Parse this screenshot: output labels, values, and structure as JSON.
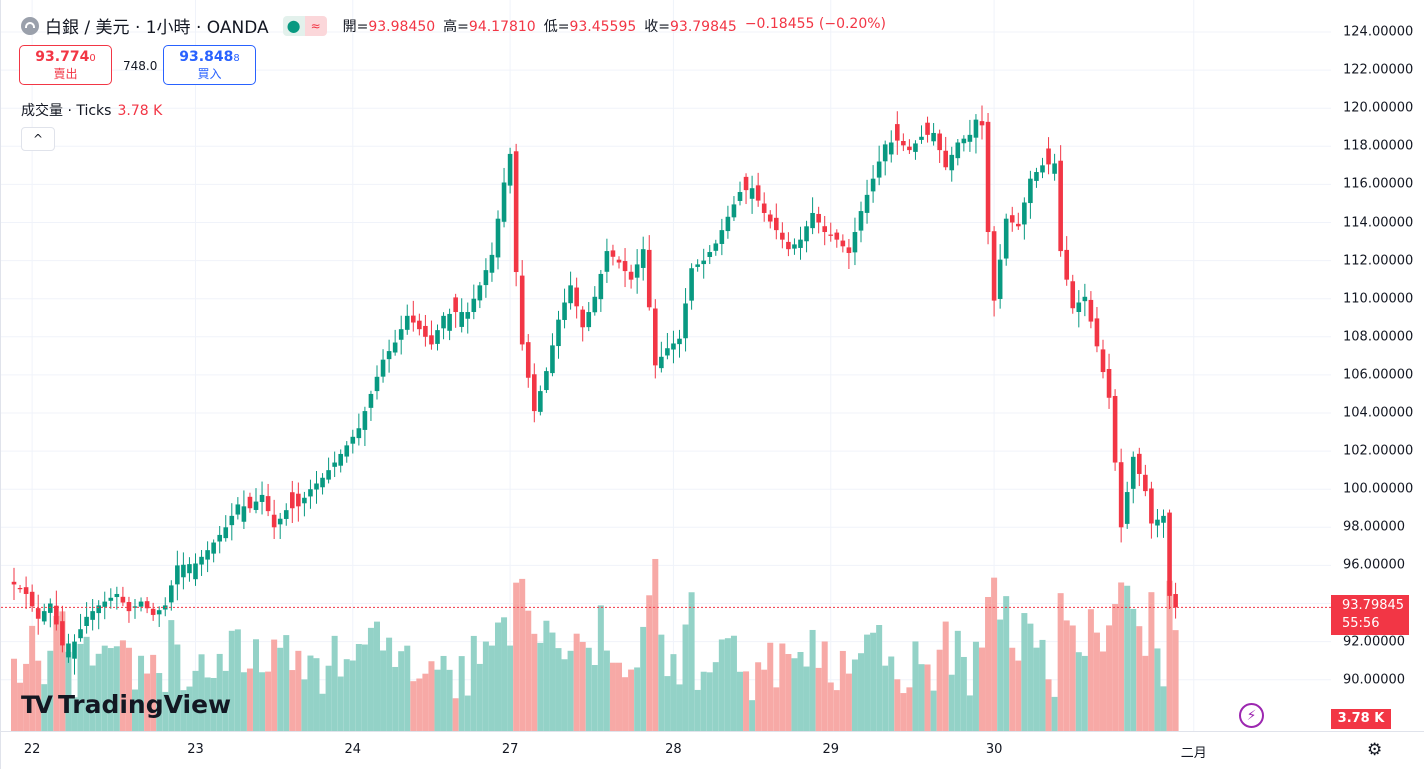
{
  "header": {
    "symbol": "白銀 / 美元 · 1小時 · OANDA",
    "status_market_open": "●",
    "status_delayed": "≈",
    "open_label": "開=",
    "open_value": "93.98450",
    "high_label": "高=",
    "high_value": "94.17810",
    "low_label": "低=",
    "low_value": "93.45595",
    "close_label": "收=",
    "close_value": "93.79845",
    "change": "−0.18455 (−0.20%)"
  },
  "trade": {
    "sell_price": "93.774",
    "sell_price_small": "0",
    "sell_label": "賣出",
    "spread": "748.0",
    "buy_price": "93.848",
    "buy_price_small": "8",
    "buy_label": "買入"
  },
  "volume_legend": {
    "name": "成交量 · Ticks",
    "value": "3.78 K"
  },
  "collapse_icon": "^",
  "current_price": {
    "value": "93.79845",
    "countdown": "55:56"
  },
  "volume_tag": "3.78 K",
  "logo": {
    "mark": "TV",
    "text": "TradingView"
  },
  "bolt_icon": "⚡",
  "settings_icon": "⚙",
  "colors": {
    "up": "#089981",
    "down": "#f23645",
    "vol_up": "#93d2c7",
    "vol_down": "#f7a9a6",
    "grid": "#f0f3fa"
  },
  "chart_data": {
    "type": "candlestick",
    "title": "白銀 / 美元 · 1小時 · OANDA",
    "ylim": [
      88.0,
      125.0
    ],
    "y_ticks": [
      "124.00000",
      "122.00000",
      "120.00000",
      "118.00000",
      "116.00000",
      "114.00000",
      "112.00000",
      "110.00000",
      "108.00000",
      "106.00000",
      "104.00000",
      "102.00000",
      "100.00000",
      "98.00000",
      "96.00000",
      "94.00000",
      "92.00000",
      "90.00000"
    ],
    "y_tick_values": [
      124,
      122,
      120,
      118,
      116,
      114,
      112,
      110,
      108,
      106,
      104,
      102,
      100,
      98,
      96,
      94,
      92,
      90
    ],
    "x_labels": [
      {
        "label": "22",
        "bar": 3
      },
      {
        "label": "23",
        "bar": 30
      },
      {
        "label": "24",
        "bar": 56
      },
      {
        "label": "27",
        "bar": 82
      },
      {
        "label": "28",
        "bar": 109
      },
      {
        "label": "29",
        "bar": 135
      },
      {
        "label": "30",
        "bar": 162
      },
      {
        "label": "二月",
        "bar": 195
      }
    ],
    "anchors": [
      [
        0,
        95.0
      ],
      [
        2,
        94.5
      ],
      [
        4,
        93.2
      ],
      [
        6,
        94.0
      ],
      [
        8,
        91.8
      ],
      [
        10,
        92.0
      ],
      [
        12,
        93.3
      ],
      [
        14,
        93.9
      ],
      [
        17,
        94.5
      ],
      [
        19,
        93.6
      ],
      [
        21,
        94.1
      ],
      [
        23,
        93.4
      ],
      [
        25,
        93.9
      ],
      [
        27,
        96.0
      ],
      [
        30,
        96.1
      ],
      [
        32,
        96.8
      ],
      [
        35,
        98.0
      ],
      [
        37,
        99.2
      ],
      [
        39,
        99.0
      ],
      [
        41,
        99.7
      ],
      [
        43,
        98.0
      ],
      [
        45,
        98.9
      ],
      [
        47,
        99.1
      ],
      [
        49,
        100.0
      ],
      [
        51,
        100.6
      ],
      [
        53,
        101.4
      ],
      [
        55,
        102.3
      ],
      [
        57,
        103.2
      ],
      [
        59,
        105.0
      ],
      [
        61,
        106.8
      ],
      [
        63,
        107.7
      ],
      [
        65,
        109.1
      ],
      [
        67,
        108.4
      ],
      [
        69,
        107.6
      ],
      [
        71,
        109.1
      ],
      [
        73,
        109.3
      ],
      [
        75,
        109.3
      ],
      [
        77,
        110.7
      ],
      [
        79,
        112.3
      ],
      [
        81,
        116.1
      ],
      [
        82,
        117.6
      ],
      [
        83,
        111.4
      ],
      [
        84,
        107.6
      ],
      [
        86,
        104.1
      ],
      [
        88,
        106.2
      ],
      [
        90,
        108.9
      ],
      [
        92,
        110.7
      ],
      [
        94,
        108.5
      ],
      [
        96,
        110.1
      ],
      [
        98,
        112.5
      ],
      [
        100,
        111.9
      ],
      [
        102,
        111.0
      ],
      [
        104,
        112.6
      ],
      [
        106,
        106.5
      ],
      [
        108,
        107.4
      ],
      [
        110,
        107.9
      ],
      [
        112,
        111.6
      ],
      [
        114,
        112.0
      ],
      [
        116,
        112.9
      ],
      [
        118,
        114.3
      ],
      [
        120,
        115.6
      ],
      [
        122,
        115.8
      ],
      [
        124,
        114.5
      ],
      [
        126,
        113.6
      ],
      [
        128,
        112.6
      ],
      [
        130,
        113.1
      ],
      [
        132,
        114.5
      ],
      [
        134,
        113.5
      ],
      [
        136,
        113.1
      ],
      [
        138,
        112.4
      ],
      [
        140,
        114.6
      ],
      [
        142,
        116.3
      ],
      [
        144,
        118.1
      ],
      [
        146,
        118.3
      ],
      [
        148,
        117.8
      ],
      [
        150,
        118.5
      ],
      [
        152,
        118.7
      ],
      [
        154,
        116.9
      ],
      [
        156,
        118.2
      ],
      [
        158,
        118.6
      ],
      [
        159,
        119.4
      ],
      [
        160,
        119.1
      ],
      [
        161,
        113.5
      ],
      [
        162,
        109.9
      ],
      [
        164,
        114.2
      ],
      [
        166,
        113.8
      ],
      [
        168,
        116.3
      ],
      [
        170,
        117.0
      ],
      [
        172,
        117.1
      ],
      [
        173,
        112.5
      ],
      [
        175,
        109.5
      ],
      [
        177,
        110.1
      ],
      [
        179,
        107.5
      ],
      [
        181,
        104.8
      ],
      [
        183,
        98.0
      ],
      [
        185,
        101.7
      ],
      [
        187,
        99.9
      ],
      [
        188,
        98.2
      ],
      [
        190,
        98.6
      ],
      [
        191,
        94.4
      ],
      [
        192,
        93.8
      ]
    ],
    "current_price": 93.79845,
    "last_volume": "3.78 K"
  }
}
